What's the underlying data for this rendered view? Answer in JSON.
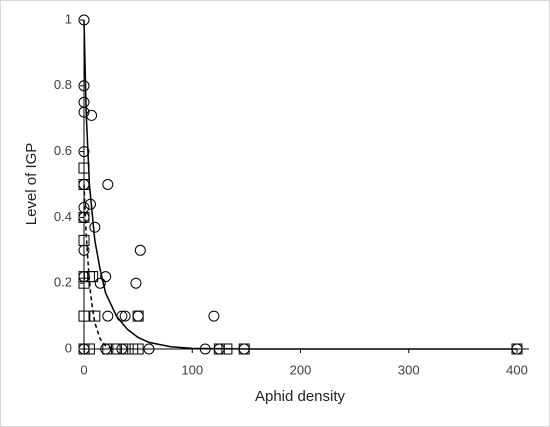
{
  "chart_data": {
    "type": "scatter",
    "x_label": "Aphid density",
    "y_label": "Level of IGP",
    "xlim": [
      0,
      400
    ],
    "ylim": [
      0,
      1
    ],
    "xticks": [
      0,
      100,
      200,
      300,
      400
    ],
    "yticks": [
      0,
      0.2,
      0.4,
      0.6,
      0.8,
      1
    ],
    "grid": false,
    "series": [
      {
        "mode": "marker",
        "marker": "circle",
        "color": "#000000",
        "x": [
          0,
          0,
          0,
          0,
          7,
          0,
          0,
          0,
          6,
          0,
          0,
          0,
          10,
          22,
          20,
          15,
          22,
          35,
          38,
          48,
          52,
          50,
          120,
          0,
          20,
          35,
          60,
          112,
          125,
          148,
          400
        ],
        "values": [
          1,
          0.8,
          0.75,
          0.72,
          0.71,
          0.6,
          0.5,
          0.43,
          0.44,
          0.4,
          0.3,
          0.22,
          0.37,
          0.5,
          0.22,
          0.2,
          0.1,
          0.1,
          0.1,
          0.2,
          0.3,
          0.1,
          0.1,
          0,
          0,
          0,
          0,
          0,
          0,
          0,
          0
        ]
      },
      {
        "mode": "marker",
        "marker": "square",
        "color": "#000000",
        "x": [
          0,
          0,
          0,
          0,
          0,
          0,
          0,
          5,
          8,
          10,
          0,
          5,
          22,
          30,
          38,
          45,
          50,
          50,
          125,
          132,
          148,
          400
        ],
        "values": [
          0.55,
          0.5,
          0.4,
          0.33,
          0.22,
          0.2,
          0.1,
          0.22,
          0.22,
          0.1,
          0,
          0,
          0,
          0,
          0,
          0,
          0,
          0.1,
          0,
          0,
          0,
          0
        ]
      },
      {
        "mode": "line",
        "dash": false,
        "color": "#000000",
        "x": [
          0,
          2,
          5,
          10,
          15,
          20,
          30,
          40,
          50,
          60,
          80,
          100,
          150,
          200,
          300,
          400
        ],
        "values": [
          1,
          0.72,
          0.5,
          0.33,
          0.24,
          0.17,
          0.1,
          0.06,
          0.035,
          0.02,
          0.007,
          0.002,
          0,
          0,
          0,
          0
        ]
      },
      {
        "mode": "line",
        "dash": true,
        "color": "#000000",
        "x": [
          0,
          2,
          4,
          6,
          8,
          10,
          15,
          20,
          25
        ],
        "values": [
          0.5,
          0.35,
          0.25,
          0.17,
          0.12,
          0.08,
          0.03,
          0.01,
          0.003
        ]
      }
    ]
  }
}
